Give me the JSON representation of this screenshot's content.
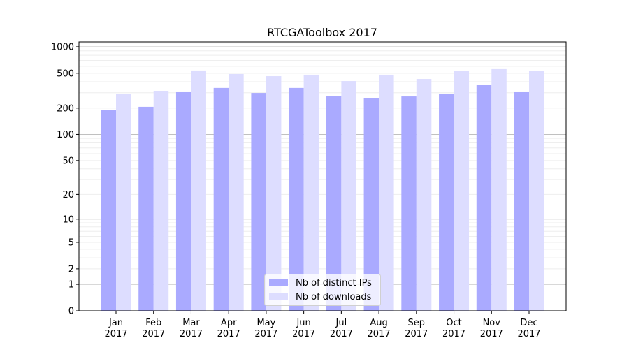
{
  "chart_data": {
    "type": "bar",
    "title": "RTCGAToolbox 2017",
    "xlabel": "",
    "ylabel": "",
    "y_scale": "log10(1+x)",
    "ylim": [
      0,
      1200
    ],
    "y_ticks": [
      0,
      1,
      2,
      5,
      10,
      20,
      50,
      100,
      200,
      500,
      1000
    ],
    "grid": true,
    "legend_position": "bottom-center",
    "categories": [
      "Jan\n2017",
      "Feb\n2017",
      "Mar\n2017",
      "Apr\n2017",
      "May\n2017",
      "Jun\n2017",
      "Jul\n2017",
      "Aug\n2017",
      "Sep\n2017",
      "Oct\n2017",
      "Nov\n2017",
      "Dec\n2017"
    ],
    "series": [
      {
        "name": "Nb of distinct IPs",
        "color": "#aaaaff",
        "values": [
          192,
          207,
          304,
          340,
          298,
          340,
          277,
          262,
          272,
          288,
          365,
          304
        ]
      },
      {
        "name": "Nb of downloads",
        "color": "#ddddff",
        "values": [
          288,
          315,
          537,
          490,
          463,
          481,
          407,
          481,
          430,
          527,
          557,
          527
        ]
      }
    ]
  }
}
